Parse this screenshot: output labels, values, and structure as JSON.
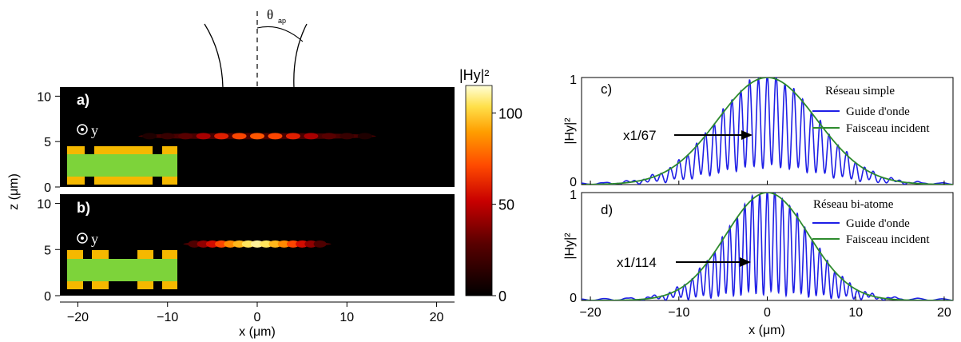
{
  "colorbar": {
    "title": "|Hy|²",
    "ticks": [
      0,
      50,
      100
    ],
    "range": [
      0,
      115
    ]
  },
  "x_axis_left": {
    "label": "x (μm)",
    "ticks": [
      -20,
      -10,
      0,
      10,
      20
    ],
    "range": [
      -22,
      22
    ]
  },
  "z_axis_left": {
    "label": "z (μm)",
    "ticks": [
      0,
      5,
      10
    ],
    "range": [
      0,
      11
    ]
  },
  "x_axis_right": {
    "label": "x (μm)",
    "ticks": [
      -20,
      -10,
      0,
      10,
      20
    ],
    "range": [
      -21,
      21
    ]
  },
  "y_axis_right": {
    "label": "|Hy|²",
    "ticks": [
      0,
      1
    ],
    "range": [
      0,
      1
    ]
  },
  "theta_label": "θ",
  "theta_sub": "ap",
  "y_marker": "y",
  "colors": {
    "guide": "#1f1fe6",
    "faisceau": "#2e8b2e",
    "gold": "#f5b800",
    "green": "#7dd33a"
  },
  "chart_data": [
    {
      "type": "heatmap",
      "panel_label": "a)",
      "title": "",
      "xlabel": "",
      "ylabel": "z (μm)",
      "xlim": [
        -22,
        22
      ],
      "ylim": [
        0,
        11
      ],
      "beam_center": [
        0,
        5.6
      ],
      "spots_x": [
        -12,
        -10,
        -8,
        -6,
        -4,
        -2,
        0,
        2,
        4,
        6,
        8,
        10,
        12
      ],
      "spot_intensity": [
        10,
        18,
        28,
        45,
        60,
        70,
        74,
        70,
        60,
        45,
        28,
        18,
        10
      ]
    },
    {
      "type": "heatmap",
      "panel_label": "b)",
      "title": "",
      "xlabel": "x (μm)",
      "ylabel": "z (μm)",
      "xlim": [
        -22,
        22
      ],
      "ylim": [
        0,
        11
      ],
      "beam_center": [
        0,
        5.6
      ],
      "spots_x": [
        -7,
        -6,
        -5,
        -4,
        -3,
        -2,
        -1,
        0,
        1,
        2,
        3,
        4,
        5,
        6,
        7
      ],
      "spot_intensity": [
        25,
        40,
        55,
        70,
        85,
        95,
        105,
        110,
        105,
        95,
        85,
        70,
        55,
        40,
        25
      ]
    },
    {
      "type": "line",
      "panel_label": "c)",
      "title": "",
      "xlabel": "",
      "ylabel": "|Hy|²",
      "xlim": [
        -21,
        21
      ],
      "ylim": [
        0,
        1
      ],
      "legend_title": "Réseau simple",
      "legend_position": "top-right",
      "annotation": "x1/67",
      "series": [
        {
          "name": "Guide d'onde",
          "gaussian_sigma": 5.6,
          "fringe_period": 1.0,
          "modulation": 0.85
        },
        {
          "name": "Faisceau incident",
          "gaussian_sigma": 5.6
        }
      ]
    },
    {
      "type": "line",
      "panel_label": "d)",
      "title": "",
      "xlabel": "x (μm)",
      "ylabel": "|Hy|²",
      "xlim": [
        -21,
        21
      ],
      "ylim": [
        0,
        1
      ],
      "legend_title": "Réseau bi-atome",
      "legend_position": "top-right",
      "annotation": "x1/114",
      "series": [
        {
          "name": "Guide d'onde",
          "gaussian_sigma": 4.7,
          "fringe_period": 0.85,
          "modulation": 0.95
        },
        {
          "name": "Faisceau incident",
          "gaussian_sigma": 4.7
        }
      ]
    }
  ]
}
